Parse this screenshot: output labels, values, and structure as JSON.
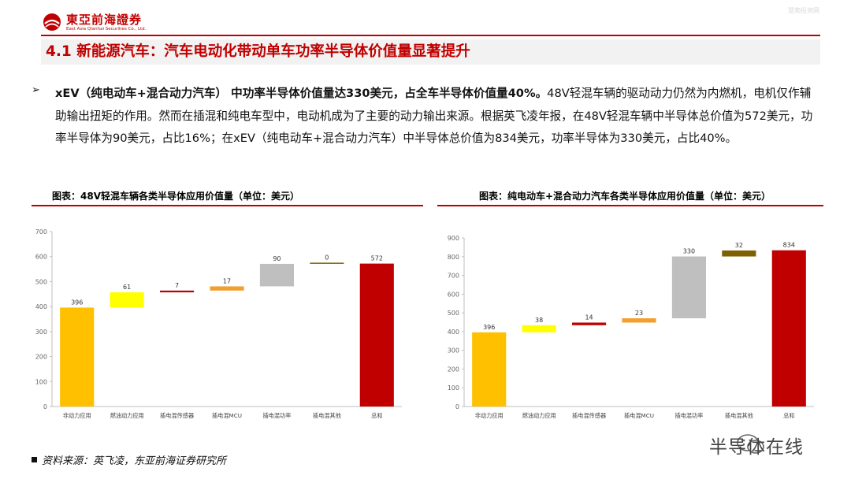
{
  "header": {
    "logo_text": "東亞前海證券",
    "logo_sub": "East Asia Qianhai Securities Co., Ltd.",
    "watermark": "慧爬投资网"
  },
  "section_title": "4.1 新能源汽车：汽车电动化带动单车功率半导体价值量显著提升",
  "body": {
    "bold_text": "xEV（纯电动车+混合动力汽车） 中功率半导体价值量达330美元，占全车半导体价值量40%。",
    "text": "48V轻混车辆的驱动动力仍然为内燃机，电机仅作辅助输出扭矩的作用。然而在插混和纯电车型中，电动机成为了主要的动力输出来源。根据英飞凌年报，在48V轻混车辆中半导体总价值为572美元，功率半导体为90美元，占比16%；在xEV（纯电动车+混合动力汽车）中半导体总价值为834美元，功率半导体为330美元，占比40%。"
  },
  "figures": {
    "left_caption": "图表：48V轻混车辆各类半导体应用价值量（单位：美元）",
    "right_caption": "图表：纯电动车+混合动力汽车各类半导体应用价值量（单位：美元）"
  },
  "chart_data": [
    {
      "type": "bar",
      "subtype": "waterfall",
      "categories": [
        "非动力应用",
        "燃油动力应用",
        "插电混传感器",
        "插电混MCU",
        "插电混功率",
        "插电混其他",
        "总和"
      ],
      "values": [
        396,
        61,
        7,
        17,
        90,
        0,
        572
      ],
      "colors": [
        "#ffc000",
        "#ffff00",
        "#c00000",
        "#f0a030",
        "#bfbfbf",
        "#7f6000",
        "#c00000"
      ],
      "ylim": [
        0,
        700
      ],
      "yticks": [
        0,
        100,
        200,
        300,
        400,
        500,
        600,
        700
      ],
      "grid": false,
      "legend": false
    },
    {
      "type": "bar",
      "subtype": "waterfall",
      "categories": [
        "非动力应用",
        "燃油动力应用",
        "插电混传感器",
        "插电混MCU",
        "插电混功率",
        "插电混其他",
        "总和"
      ],
      "values": [
        396,
        38,
        14,
        23,
        330,
        32,
        834
      ],
      "colors": [
        "#ffc000",
        "#ffff00",
        "#c00000",
        "#f0a030",
        "#bfbfbf",
        "#7f6000",
        "#c00000"
      ],
      "ylim": [
        0,
        900
      ],
      "yticks": [
        0,
        100,
        200,
        300,
        400,
        500,
        600,
        700,
        800,
        900
      ],
      "grid": false,
      "legend": false
    }
  ],
  "source": "资料来源：英飞凌，东亚前海证券研究所",
  "watermark_bottom": "半导体在线",
  "colors": {
    "accent": "#c00000",
    "heading_bg": "#f2f2f2"
  }
}
